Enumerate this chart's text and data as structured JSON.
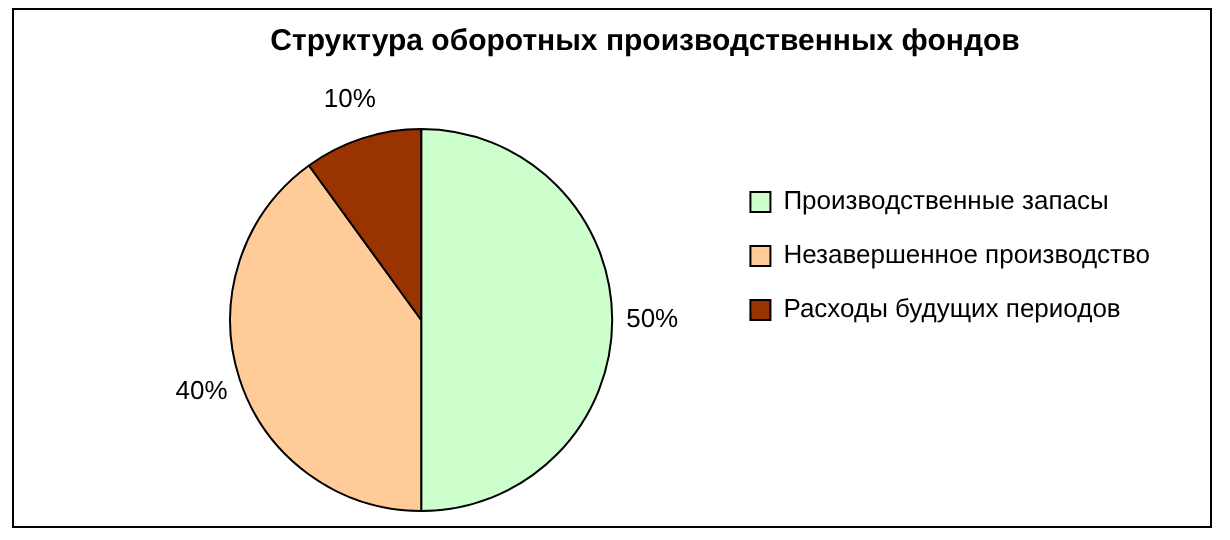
{
  "chart_data": {
    "type": "pie",
    "title": "Структура оборотных производственных фондов",
    "categories": [
      "Производственные запасы",
      "Незавершенное производство",
      "Расходы будущих периодов"
    ],
    "values": [
      50,
      40,
      10
    ],
    "colors": [
      "#ccffcc",
      "#ffcc99",
      "#993300"
    ],
    "value_labels": [
      "50%",
      "40%",
      "10%"
    ],
    "legend": "right"
  }
}
